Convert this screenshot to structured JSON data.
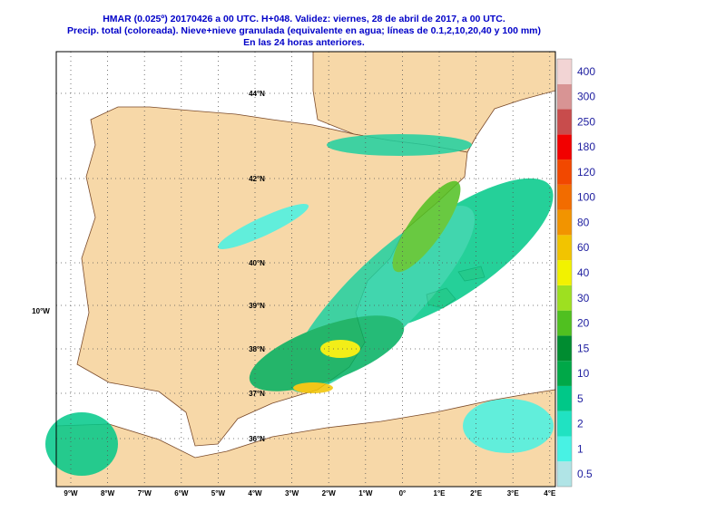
{
  "header": {
    "lines": [
      "HMAR (0.025º) 20170426 a 00 UTC.  H+048.  Validez: viernes, 28 de abril de 2017,  a  00 UTC.",
      "Precip. total (coloreada). Nieve+nieve granulada (equivalente en agua; líneas de 0.1,2,10,20,40 y 100 mm)",
      "En las 24 horas anteriores."
    ]
  },
  "map": {
    "lat_labels": [
      "44°N",
      "42°N",
      "40°N",
      "39°N",
      "38°N",
      "37°N",
      "36°N"
    ],
    "lon_side_label": "10°W",
    "lon_labels": [
      "9°W",
      "8°W",
      "7°W",
      "6°W",
      "5°W",
      "4°W",
      "3°W",
      "2°W",
      "1°W",
      "0°",
      "1°E",
      "2°E",
      "3°E",
      "4°E"
    ]
  },
  "colorbar": {
    "levels": [
      0.5,
      1,
      2,
      5,
      10,
      15,
      20,
      30,
      40,
      60,
      80,
      100,
      120,
      180,
      250,
      300,
      400
    ],
    "colors": [
      "#b0e4e6",
      "#48f2e4",
      "#20e2c2",
      "#00c888",
      "#00a848",
      "#008c30",
      "#50c020",
      "#9ee020",
      "#f2f200",
      "#f2c400",
      "#f29400",
      "#f26c00",
      "#f24800",
      "#f20000",
      "#c84c4c",
      "#d89494",
      "#f2d4d4"
    ]
  }
}
